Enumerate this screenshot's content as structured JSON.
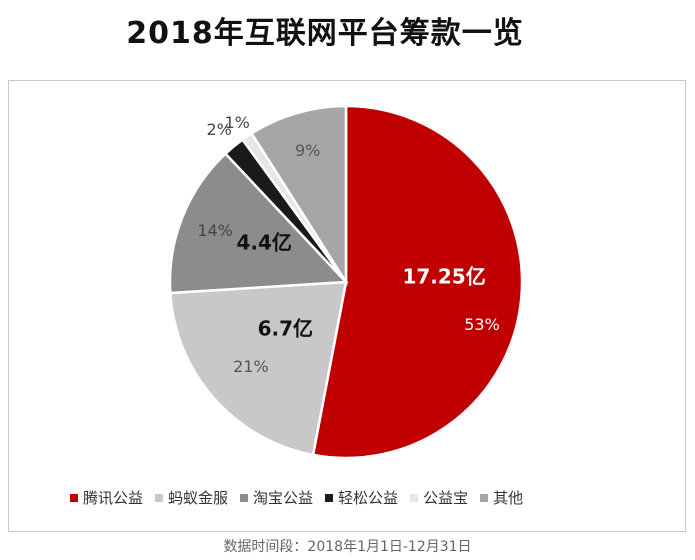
{
  "page": {
    "title": "2018年互联网平台筹款一览",
    "footnote": "数据时间段：2018年1月1日-12月31日"
  },
  "chart_data": {
    "type": "pie",
    "title": "2018年互联网平台筹款一览",
    "legend_position": "bottom",
    "slices": [
      {
        "name": "腾讯公益",
        "value": 53,
        "percent_label": "53%",
        "amount_label": "17.25亿",
        "color": "#c00000",
        "label_color": "#ffffff"
      },
      {
        "name": "蚂蚁金服",
        "value": 21,
        "percent_label": "21%",
        "amount_label": "6.7亿",
        "color": "#c8c8c8",
        "label_color": "#555555"
      },
      {
        "name": "淘宝公益",
        "value": 14,
        "percent_label": "14%",
        "amount_label": "4.4亿",
        "color": "#8c8c8c",
        "label_color": "#444444"
      },
      {
        "name": "轻松公益",
        "value": 2,
        "percent_label": "2%",
        "amount_label": "",
        "color": "#1a1a1a",
        "label_color": "#444444"
      },
      {
        "name": "公益宝",
        "value": 1,
        "percent_label": "1%",
        "amount_label": "",
        "color": "#e6e6e6",
        "label_color": "#444444"
      },
      {
        "name": "其他",
        "value": 9,
        "percent_label": "9%",
        "amount_label": "",
        "color": "#a6a6a6",
        "label_color": "#555555"
      }
    ]
  }
}
